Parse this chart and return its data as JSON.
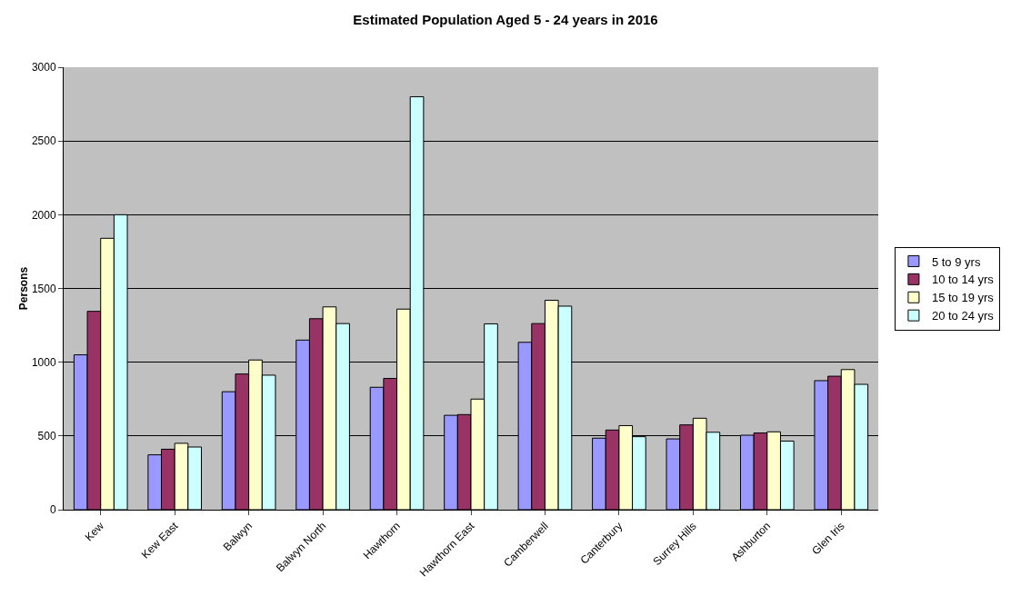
{
  "chart_data": {
    "type": "bar",
    "title": "Estimated Population Aged 5 - 24 years in 2016",
    "ylabel": "Persons",
    "categories": [
      "Kew",
      "Kew East",
      "Balwyn",
      "Balwyn North",
      "Hawthorn",
      "Hawthorn East",
      "Camberwell",
      "Canterbury",
      "Surrey Hills",
      "Ashburton",
      "Glen Iris"
    ],
    "series": [
      {
        "name": "5 to 9 yrs",
        "color": "#9999ff",
        "values": [
          1050,
          372,
          800,
          1150,
          830,
          640,
          1135,
          485,
          480,
          505,
          875
        ]
      },
      {
        "name": "10 to 14 yrs",
        "color": "#993366",
        "values": [
          1345,
          410,
          920,
          1295,
          890,
          645,
          1262,
          540,
          575,
          520,
          905
        ]
      },
      {
        "name": "15 to 19 yrs",
        "color": "#ffffcc",
        "values": [
          1840,
          450,
          1015,
          1375,
          1360,
          750,
          1420,
          570,
          620,
          528,
          950
        ]
      },
      {
        "name": "20 to 24 yrs",
        "color": "#ccffff",
        "values": [
          2000,
          425,
          912,
          1262,
          2800,
          1260,
          1380,
          495,
          525,
          465,
          850
        ]
      }
    ],
    "ylim": [
      0,
      3000
    ],
    "yticks": [
      0,
      500,
      1000,
      1500,
      2000,
      2500,
      3000
    ],
    "grid": "y",
    "legend": "right"
  }
}
